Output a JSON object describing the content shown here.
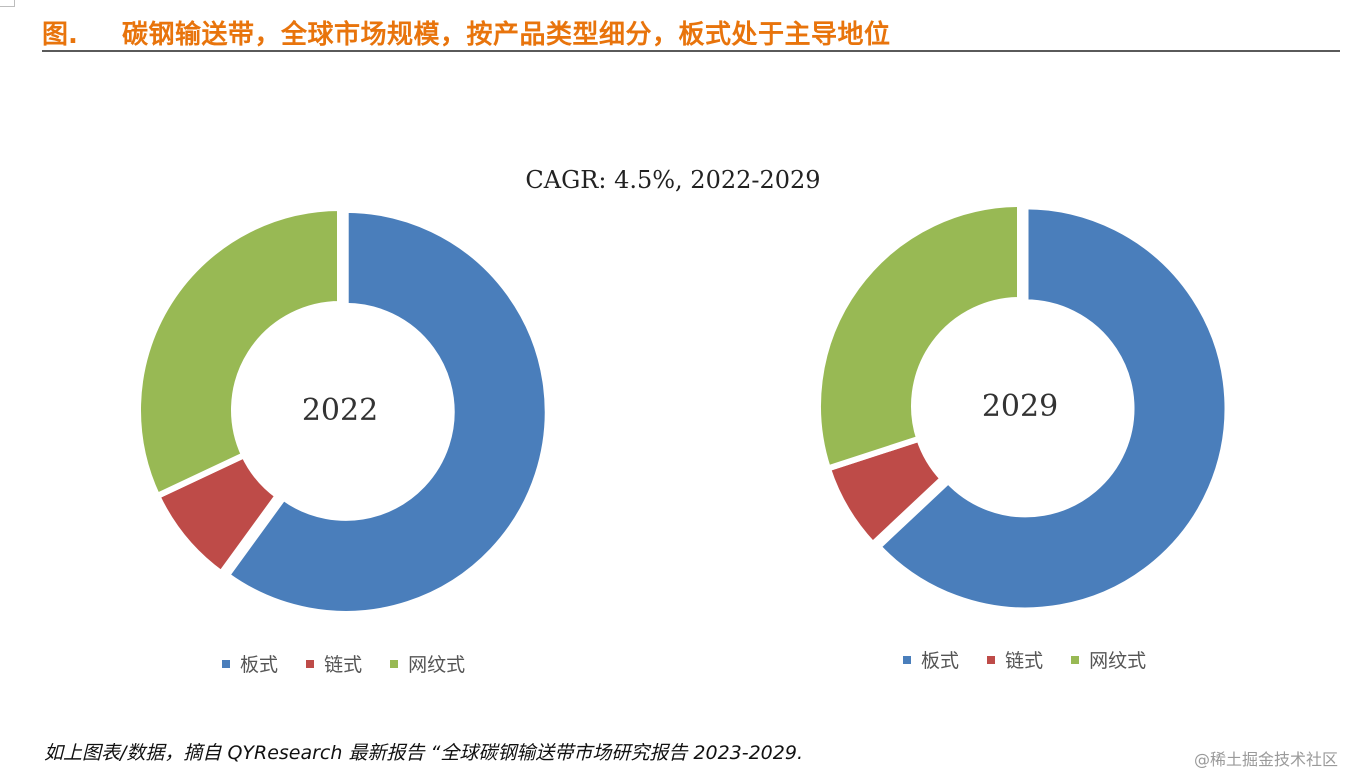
{
  "header": {
    "fig_label": "图.",
    "title": "碳钢输送带，全球市场规模，按产品类型细分，板式处于主导地位"
  },
  "chart_note": "CAGR: 4.5%, 2022-2029",
  "colors": {
    "title": "#e8740c",
    "blue": "#4a7ebb",
    "red": "#be4b48",
    "green": "#98b954"
  },
  "chart_data": [
    {
      "type": "pie",
      "center_label": "2022",
      "categories": [
        "板式",
        "链式",
        "网纹式"
      ],
      "values": [
        60,
        8,
        32
      ],
      "legend_position": "bottom"
    },
    {
      "type": "pie",
      "center_label": "2029",
      "categories": [
        "板式",
        "链式",
        "网纹式"
      ],
      "values": [
        63,
        7,
        30
      ],
      "legend_position": "bottom"
    }
  ],
  "source": "如上图表/数据，摘自 QYResearch 最新报告 “全球碳钢输送带市场研究报告 2023-2029.",
  "watermark": "@稀土掘金技术社区"
}
